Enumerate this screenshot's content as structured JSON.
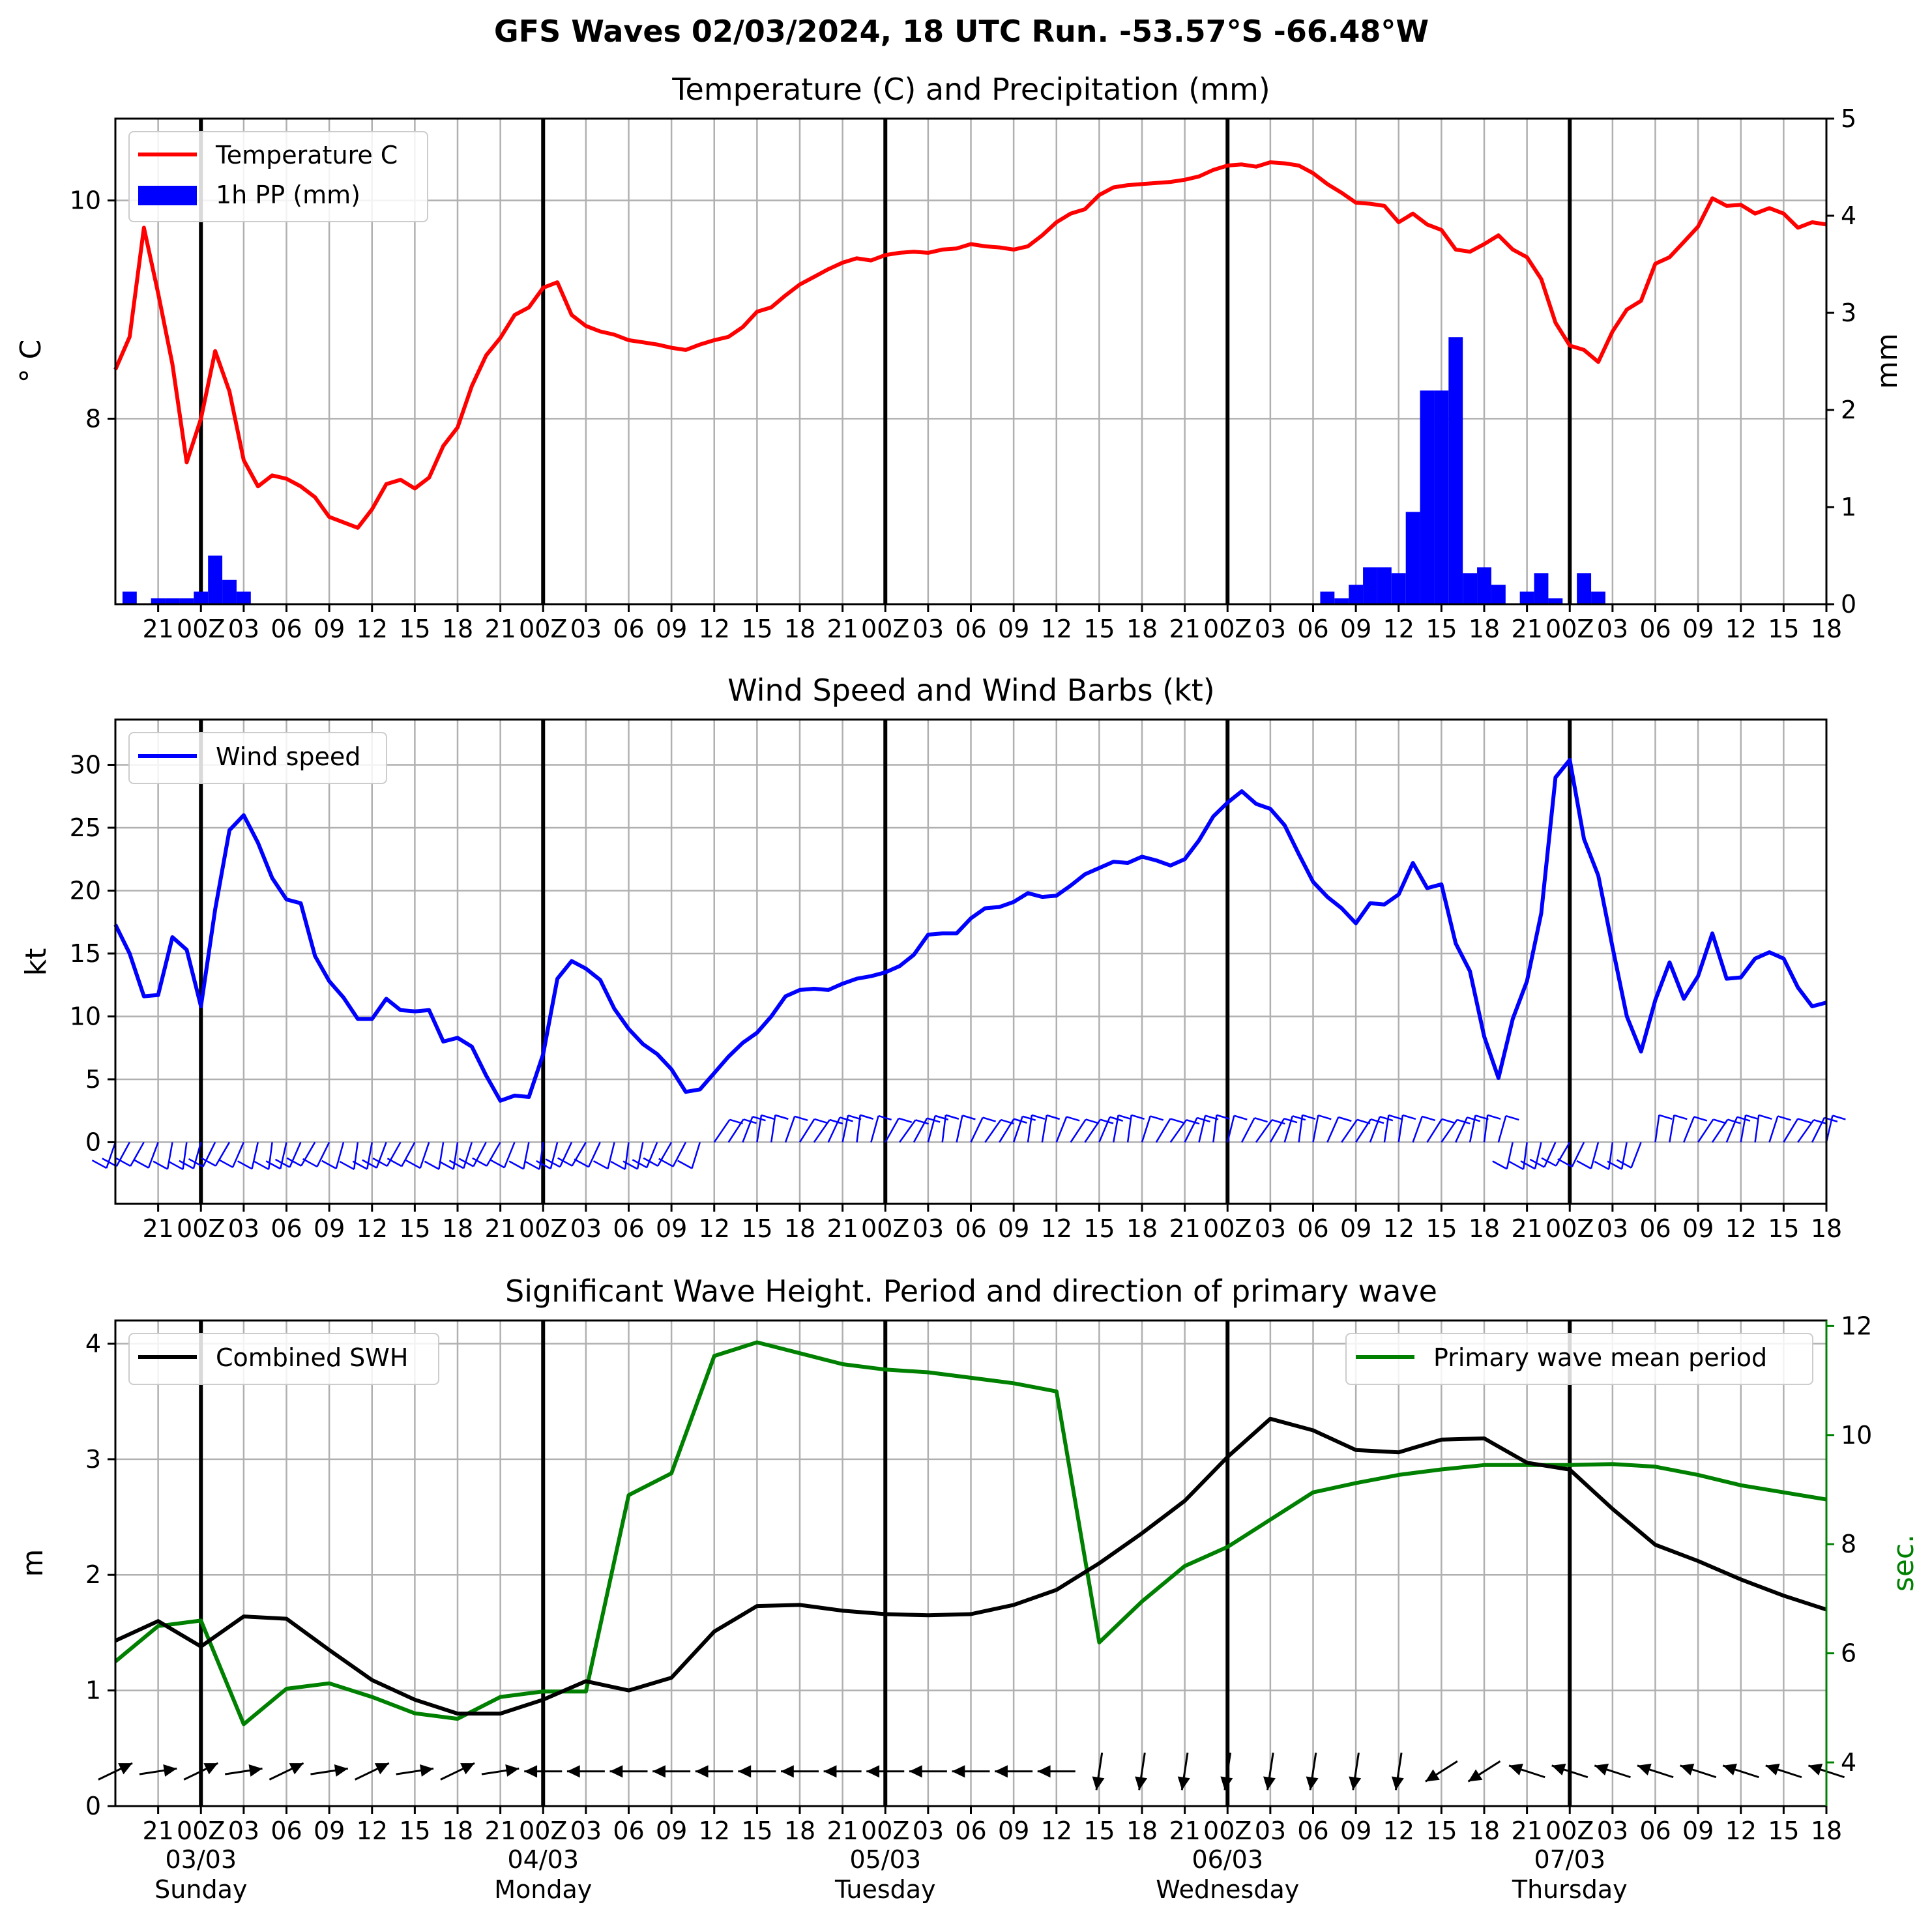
{
  "suptitle": "GFS Waves 02/03/2024, 18 UTC Run. -53.57°S -66.48°W",
  "x_tick_labels": [
    "21",
    "00Z",
    "03",
    "06",
    "09",
    "12",
    "15",
    "18",
    "21",
    "00Z",
    "03",
    "06",
    "09",
    "12",
    "15",
    "18",
    "21",
    "00Z",
    "03",
    "06",
    "09",
    "12",
    "15",
    "18",
    "21",
    "00Z",
    "03",
    "06",
    "09",
    "12",
    "15",
    "18",
    "21",
    "00Z",
    "03",
    "06",
    "09",
    "12",
    "15",
    "18"
  ],
  "date_labels": [
    {
      "date": "03/03",
      "day": "Sunday"
    },
    {
      "date": "04/03",
      "day": "Monday"
    },
    {
      "date": "05/03",
      "day": "Tuesday"
    },
    {
      "date": "06/03",
      "day": "Wednesday"
    },
    {
      "date": "07/03",
      "day": "Thursday"
    }
  ],
  "chart_data": [
    {
      "type": "line",
      "title": "Temperature (C) and Precipitation (mm)",
      "x_unit": "hours since 02/03/2024 18 UTC",
      "x_range": [
        0,
        120
      ],
      "ylabel": "° C",
      "ylim": [
        6.3,
        10.75
      ],
      "yticks": [
        8,
        10
      ],
      "y2label": "mm",
      "y2lim": [
        0,
        5
      ],
      "y2ticks": [
        0,
        1,
        2,
        3,
        4,
        5
      ],
      "grid": true,
      "legend_position": "upper left",
      "series": [
        {
          "name": "Temperature C",
          "color": "#ff0000",
          "kind": "line",
          "axis": "left",
          "x": [
            0,
            1,
            2,
            3,
            4,
            5,
            6,
            7,
            8,
            9,
            10,
            11,
            12,
            13,
            14,
            15,
            16,
            17,
            18,
            19,
            20,
            21,
            22,
            23,
            24,
            25,
            26,
            27,
            28,
            29,
            30,
            31,
            32,
            33,
            34,
            35,
            36,
            37,
            38,
            39,
            40,
            41,
            42,
            43,
            44,
            45,
            46,
            47,
            48,
            49,
            50,
            51,
            52,
            53,
            54,
            55,
            56,
            57,
            58,
            59,
            60,
            61,
            62,
            63,
            64,
            65,
            66,
            67,
            68,
            69,
            70,
            71,
            72,
            73,
            74,
            75,
            76,
            77,
            78,
            79,
            80,
            81,
            82,
            83,
            84,
            85,
            86,
            87,
            88,
            89,
            90,
            91,
            92,
            93,
            94,
            95,
            96,
            97,
            98,
            99,
            100,
            101,
            102,
            103,
            104,
            105,
            106,
            107,
            108,
            109,
            110,
            111,
            112,
            113,
            114,
            115,
            116,
            117,
            118,
            119,
            120
          ],
          "values": [
            8.45,
            8.75,
            9.75,
            9.15,
            8.5,
            7.6,
            8.0,
            8.62,
            8.25,
            7.62,
            7.38,
            7.48,
            7.45,
            7.38,
            7.28,
            7.1,
            7.05,
            7.0,
            7.17,
            7.4,
            7.44,
            7.36,
            7.46,
            7.75,
            7.92,
            8.3,
            8.58,
            8.74,
            8.95,
            9.02,
            9.2,
            9.25,
            8.95,
            8.85,
            8.8,
            8.77,
            8.72,
            8.7,
            8.68,
            8.65,
            8.63,
            8.68,
            8.72,
            8.75,
            8.84,
            8.98,
            9.02,
            9.13,
            9.23,
            9.3,
            9.37,
            9.43,
            9.47,
            9.45,
            9.5,
            9.52,
            9.53,
            9.52,
            9.55,
            9.56,
            9.6,
            9.58,
            9.57,
            9.55,
            9.58,
            9.68,
            9.8,
            9.88,
            9.92,
            10.05,
            10.12,
            10.14,
            10.15,
            10.16,
            10.17,
            10.19,
            10.22,
            10.28,
            10.32,
            10.33,
            10.31,
            10.35,
            10.34,
            10.32,
            10.25,
            10.15,
            10.07,
            9.98,
            9.97,
            9.95,
            9.8,
            9.88,
            9.78,
            9.73,
            9.55,
            9.53,
            9.6,
            9.68,
            9.55,
            9.48,
            9.28,
            8.88,
            8.67,
            8.63,
            8.52,
            8.8,
            9.0,
            9.08,
            9.42,
            9.48,
            9.62,
            9.76,
            10.02,
            9.95,
            9.96,
            9.88,
            9.93,
            9.88,
            9.75,
            9.8,
            9.78
          ]
        },
        {
          "name": "1h PP (mm)",
          "color": "#0000ff",
          "kind": "bar",
          "axis": "right",
          "x": [
            1,
            3,
            4,
            5,
            6,
            7,
            8,
            9,
            85,
            86,
            87,
            88,
            89,
            90,
            91,
            92,
            93,
            94,
            95,
            96,
            97,
            98,
            99,
            100,
            101,
            102,
            103,
            104,
            105
          ],
          "values": [
            0.13,
            0.06,
            0.06,
            0.06,
            0.13,
            0.5,
            0.25,
            0.13,
            0.13,
            0.06,
            0.2,
            0.38,
            0.38,
            0.32,
            0.95,
            2.2,
            2.2,
            2.75,
            0.32,
            0.38,
            0.2,
            0.0,
            0.13,
            0.32,
            0.06,
            0.0,
            0.32,
            0.13,
            0.0
          ]
        }
      ]
    },
    {
      "type": "line",
      "title": "Wind Speed and Wind Barbs (kt)",
      "x_unit": "hours since 02/03/2024 18 UTC",
      "x_range": [
        0,
        120
      ],
      "ylabel": "kt",
      "ylim": [
        -4.9,
        33.6
      ],
      "yticks": [
        0,
        5,
        10,
        15,
        20,
        25,
        30
      ],
      "grid": true,
      "legend_position": "upper left",
      "series": [
        {
          "name": "Wind speed",
          "color": "#0000ff",
          "x": [
            0,
            1,
            2,
            3,
            4,
            5,
            6,
            7,
            8,
            9,
            10,
            11,
            12,
            13,
            14,
            15,
            16,
            17,
            18,
            19,
            20,
            21,
            22,
            23,
            24,
            25,
            26,
            27,
            28,
            29,
            30,
            31,
            32,
            33,
            34,
            35,
            36,
            37,
            38,
            39,
            40,
            41,
            42,
            43,
            44,
            45,
            46,
            47,
            48,
            49,
            50,
            51,
            52,
            53,
            54,
            55,
            56,
            57,
            58,
            59,
            60,
            61,
            62,
            63,
            64,
            65,
            66,
            67,
            68,
            69,
            70,
            71,
            72,
            73,
            74,
            75,
            76,
            77,
            78,
            79,
            80,
            81,
            82,
            83,
            84,
            85,
            86,
            87,
            88,
            89,
            90,
            91,
            92,
            93,
            94,
            95,
            96,
            97,
            98,
            99,
            100,
            101,
            102,
            103,
            104,
            105,
            106,
            107,
            108,
            109,
            110,
            111,
            112,
            113,
            114,
            115,
            116,
            117,
            118,
            119,
            120
          ],
          "values": [
            17.3,
            15.0,
            11.6,
            11.7,
            16.3,
            15.3,
            10.8,
            18.5,
            24.8,
            26.0,
            23.8,
            21.0,
            19.3,
            19.0,
            14.8,
            12.8,
            11.5,
            9.8,
            9.8,
            11.4,
            10.5,
            10.4,
            10.5,
            8.0,
            8.3,
            7.6,
            5.3,
            3.3,
            3.7,
            3.6,
            7.0,
            13.0,
            14.4,
            13.8,
            12.9,
            10.6,
            9.0,
            7.8,
            7.0,
            5.8,
            4.0,
            4.2,
            5.5,
            6.8,
            7.9,
            8.7,
            10.0,
            11.6,
            12.1,
            12.2,
            12.1,
            12.6,
            13.0,
            13.2,
            13.5,
            14.0,
            14.9,
            16.5,
            16.6,
            16.6,
            17.8,
            18.6,
            18.7,
            19.1,
            19.8,
            19.5,
            19.6,
            20.4,
            21.3,
            21.8,
            22.3,
            22.2,
            22.7,
            22.4,
            22.0,
            22.5,
            24.0,
            25.9,
            27.0,
            27.9,
            26.9,
            26.5,
            25.2,
            22.9,
            20.7,
            19.5,
            18.6,
            17.4,
            19.0,
            18.9,
            19.7,
            22.2,
            20.2,
            20.5,
            15.8,
            13.6,
            8.4,
            5.1,
            9.8,
            12.8,
            18.2,
            29.0,
            30.4,
            24.1,
            21.2,
            15.5,
            10.0,
            7.2,
            11.3,
            14.3,
            11.4,
            13.2,
            16.6,
            13.0,
            13.1,
            14.6,
            15.1,
            14.6,
            12.3,
            10.8,
            11.1
          ]
        }
      ],
      "wind_barbs_hours": [
        0,
        1,
        2,
        3,
        4,
        5,
        6,
        7,
        8,
        9,
        10,
        11,
        12,
        13,
        14,
        15,
        16,
        17,
        18,
        19,
        20,
        21,
        22,
        23,
        24,
        25,
        26,
        27,
        28,
        29,
        30,
        31,
        32,
        33,
        34,
        35,
        36,
        37,
        38,
        39,
        40,
        41,
        42,
        43,
        44,
        45,
        46,
        47,
        48,
        49,
        50,
        51,
        52,
        53,
        54,
        55,
        56,
        57,
        58,
        59,
        60,
        61,
        62,
        63,
        64,
        65,
        66,
        67,
        68,
        69,
        70,
        71,
        72,
        73,
        74,
        75,
        76,
        77,
        78,
        79,
        80,
        81,
        82,
        83,
        84,
        85,
        86,
        87,
        88,
        89,
        90,
        91,
        92,
        93,
        94,
        95,
        96,
        97,
        98,
        99,
        100,
        101,
        102,
        103,
        104,
        105,
        106,
        107,
        108,
        109,
        110,
        111,
        112,
        113,
        114,
        115,
        116,
        117,
        118,
        119,
        120
      ]
    },
    {
      "type": "line",
      "title": "Significant Wave Height. Period and direction of primary wave",
      "x_unit": "hours since 02/03/2024 18 UTC",
      "x_range": [
        0,
        120
      ],
      "ylabel": "m",
      "ylim": [
        0,
        4.2
      ],
      "yticks": [
        0,
        1,
        2,
        3,
        4
      ],
      "y2label": "sec.",
      "y2lim": [
        3.2,
        12.1
      ],
      "y2ticks": [
        4,
        6,
        8,
        10,
        12
      ],
      "grid": true,
      "series": [
        {
          "name": "Combined SWH",
          "color": "#000000",
          "axis": "left",
          "legend_position": "upper left",
          "x": [
            0,
            3,
            6,
            9,
            12,
            15,
            18,
            21,
            24,
            27,
            30,
            33,
            36,
            39,
            42,
            45,
            48,
            51,
            54,
            57,
            60,
            63,
            66,
            69,
            72,
            75,
            78,
            81,
            84,
            87,
            90,
            93,
            96,
            99,
            102,
            105,
            108,
            111,
            114,
            117,
            120
          ],
          "values": [
            1.43,
            1.6,
            1.38,
            1.64,
            1.62,
            1.35,
            1.09,
            0.92,
            0.8,
            0.8,
            0.92,
            1.08,
            1.0,
            1.11,
            1.51,
            1.73,
            1.74,
            1.69,
            1.66,
            1.65,
            1.66,
            1.74,
            1.87,
            2.1,
            2.36,
            2.64,
            3.02,
            3.35,
            3.25,
            3.08,
            3.06,
            3.17,
            3.18,
            2.97,
            2.91,
            2.57,
            2.26,
            2.12,
            1.96,
            1.82,
            1.7
          ]
        },
        {
          "name": "Primary wave mean period",
          "color": "#008000",
          "axis": "right",
          "legend_position": "upper right",
          "x": [
            0,
            3,
            6,
            9,
            12,
            15,
            18,
            21,
            24,
            27,
            30,
            33,
            36,
            39,
            42,
            45,
            48,
            51,
            54,
            57,
            60,
            63,
            66,
            69,
            72,
            75,
            78,
            81,
            84,
            87,
            90,
            93,
            96,
            99,
            102,
            105,
            108,
            111,
            114,
            117,
            120
          ],
          "values": [
            5.85,
            6.5,
            6.6,
            4.7,
            5.35,
            5.45,
            5.2,
            4.9,
            4.8,
            5.2,
            5.3,
            5.3,
            8.9,
            9.3,
            11.45,
            11.7,
            11.5,
            11.3,
            11.2,
            11.15,
            11.05,
            10.95,
            10.8,
            6.2,
            6.95,
            7.6,
            7.95,
            8.45,
            8.95,
            9.12,
            9.27,
            9.37,
            9.45,
            9.45,
            9.45,
            9.47,
            9.42,
            9.27,
            9.08,
            8.95,
            8.82
          ]
        }
      ],
      "wave_direction_arrows_hours": [
        0,
        3,
        6,
        9,
        12,
        15,
        18,
        21,
        24,
        27,
        30,
        33,
        36,
        39,
        42,
        45,
        48,
        51,
        54,
        57,
        60,
        63,
        66,
        69,
        72,
        75,
        78,
        81,
        84,
        87,
        90,
        93,
        96,
        99,
        102,
        105,
        108,
        111,
        114,
        117,
        120
      ]
    }
  ]
}
